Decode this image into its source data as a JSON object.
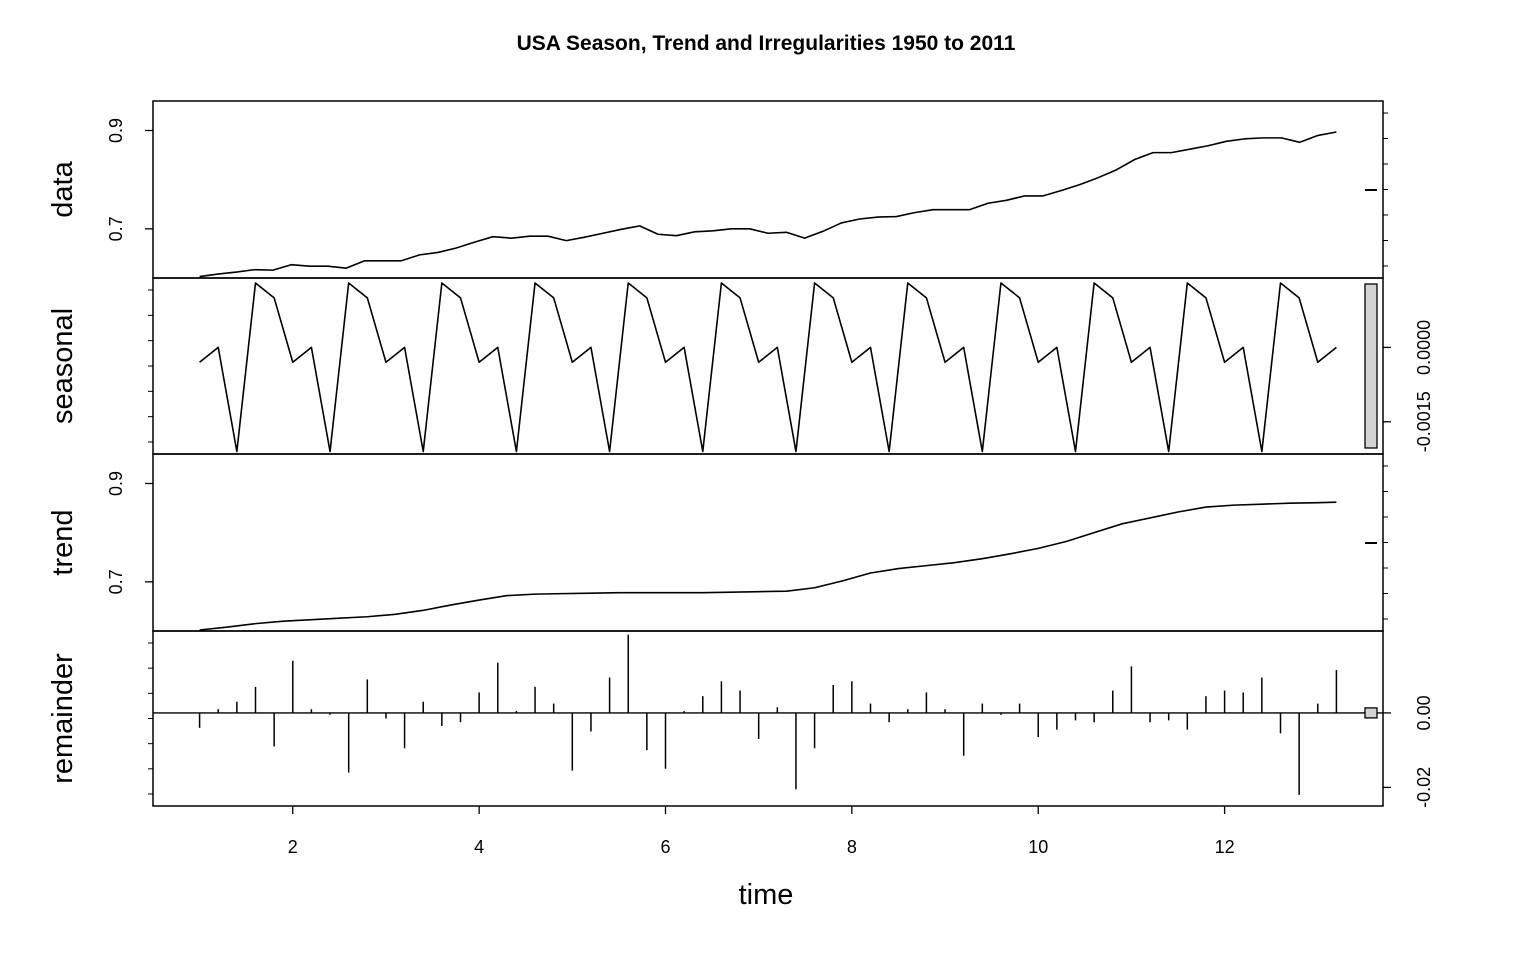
{
  "chart_data": {
    "type": "line",
    "title": "USA Season, Trend and Irregularities 1950 to 2011",
    "xlabel": "time",
    "xlim": [
      0.5,
      13.7
    ],
    "x_ticks": [
      "2",
      "4",
      "6",
      "8",
      "10",
      "12"
    ],
    "x_tick_values": [
      2,
      4,
      6,
      8,
      10,
      12
    ],
    "range_bar_color": "#d3d3d3",
    "panels": [
      {
        "name": "data",
        "label": "data",
        "ylim": [
          0.6,
          0.96
        ],
        "y_ticks": [
          "0.7",
          "0.9"
        ],
        "y_tick_values": [
          0.7,
          0.9
        ],
        "axis_side": "left",
        "values": [
          0.603,
          0.608,
          0.612,
          0.617,
          0.616,
          0.627,
          0.624,
          0.624,
          0.62,
          0.635,
          0.635,
          0.635,
          0.647,
          0.652,
          0.661,
          0.673,
          0.684,
          0.681,
          0.685,
          0.685,
          0.676,
          0.683,
          0.691,
          0.699,
          0.706,
          0.689,
          0.686,
          0.694,
          0.696,
          0.7,
          0.7,
          0.691,
          0.693,
          0.681,
          0.695,
          0.712,
          0.72,
          0.724,
          0.725,
          0.733,
          0.739,
          0.739,
          0.739,
          0.752,
          0.758,
          0.767,
          0.767,
          0.778,
          0.79,
          0.804,
          0.82,
          0.841,
          0.855,
          0.855,
          0.862,
          0.869,
          0.878,
          0.883,
          0.885,
          0.885,
          0.876,
          0.89,
          0.897
        ]
      },
      {
        "name": "seasonal",
        "label": "seasonal",
        "ylim": [
          -0.00215,
          0.0014
        ],
        "y_ticks": [
          "-0.0015",
          "0.0000"
        ],
        "y_tick_values": [
          -0.0015,
          0.0
        ],
        "axis_side": "right",
        "cycle_x": [
          0,
          0.2,
          0.4,
          0.6,
          0.8,
          1.0
        ],
        "cycle_values": [
          -0.0003,
          0.0,
          -0.0021,
          0.0013,
          0.001,
          -0.0003
        ],
        "x_start": 1.0,
        "x_end": 13.2
      },
      {
        "name": "trend",
        "label": "trend",
        "ylim": [
          0.6,
          0.96
        ],
        "y_ticks": [
          "0.7",
          "0.9"
        ],
        "y_tick_values": [
          0.7,
          0.9
        ],
        "axis_side": "left",
        "x": [
          1.0,
          1.3,
          1.6,
          1.9,
          2.2,
          2.5,
          2.8,
          3.1,
          3.4,
          3.7,
          4.0,
          4.3,
          4.6,
          4.9,
          5.2,
          5.5,
          5.8,
          6.1,
          6.4,
          6.7,
          7.0,
          7.3,
          7.6,
          7.9,
          8.2,
          8.5,
          8.8,
          9.1,
          9.4,
          9.7,
          10.0,
          10.3,
          10.6,
          10.9,
          11.2,
          11.5,
          11.8,
          12.1,
          12.4,
          12.7,
          13.0,
          13.2
        ],
        "values": [
          0.602,
          0.608,
          0.615,
          0.62,
          0.623,
          0.626,
          0.629,
          0.634,
          0.642,
          0.653,
          0.663,
          0.672,
          0.675,
          0.676,
          0.677,
          0.678,
          0.678,
          0.678,
          0.678,
          0.679,
          0.68,
          0.681,
          0.688,
          0.702,
          0.718,
          0.727,
          0.733,
          0.739,
          0.747,
          0.757,
          0.768,
          0.782,
          0.8,
          0.818,
          0.83,
          0.842,
          0.852,
          0.856,
          0.858,
          0.86,
          0.861,
          0.862
        ]
      },
      {
        "name": "remainder",
        "label": "remainder",
        "ylim": [
          -0.025,
          0.022
        ],
        "y_ticks": [
          "-0.02",
          "0.00"
        ],
        "y_tick_values": [
          -0.02,
          0.0
        ],
        "axis_side": "right",
        "x": [
          1.0,
          1.2,
          1.4,
          1.6,
          1.8,
          2.0,
          2.2,
          2.4,
          2.6,
          2.8,
          3.0,
          3.2,
          3.4,
          3.6,
          3.8,
          4.0,
          4.2,
          4.4,
          4.6,
          4.8,
          5.0,
          5.2,
          5.4,
          5.6,
          5.8,
          6.0,
          6.2,
          6.4,
          6.6,
          6.8,
          7.0,
          7.2,
          7.4,
          7.6,
          7.8,
          8.0,
          8.2,
          8.4,
          8.6,
          8.8,
          9.0,
          9.2,
          9.4,
          9.6,
          9.8,
          10.0,
          10.2,
          10.4,
          10.6,
          10.8,
          11.0,
          11.2,
          11.4,
          11.6,
          11.8,
          12.0,
          12.2,
          12.4,
          12.6,
          12.8,
          13.0,
          13.2
        ],
        "values": [
          -0.004,
          0.001,
          0.003,
          0.007,
          -0.009,
          0.014,
          0.001,
          -0.0005,
          -0.016,
          0.009,
          -0.0015,
          -0.0095,
          0.003,
          -0.0035,
          -0.0025,
          0.0055,
          0.0135,
          0.0005,
          0.007,
          0.0025,
          -0.0155,
          -0.005,
          0.0095,
          0.021,
          -0.01,
          -0.015,
          0.0005,
          0.0045,
          0.0085,
          0.006,
          -0.007,
          0.0015,
          -0.0205,
          -0.0095,
          0.0075,
          0.0085,
          0.0025,
          -0.0025,
          0.001,
          0.0055,
          0.001,
          -0.0115,
          0.0025,
          -0.0005,
          0.0025,
          -0.0065,
          -0.0045,
          -0.002,
          -0.0025,
          0.006,
          0.0125,
          -0.0025,
          -0.002,
          -0.0045,
          0.0045,
          0.006,
          0.0055,
          0.0095,
          -0.0055,
          -0.022,
          0.0025,
          0.0115
        ]
      }
    ]
  }
}
